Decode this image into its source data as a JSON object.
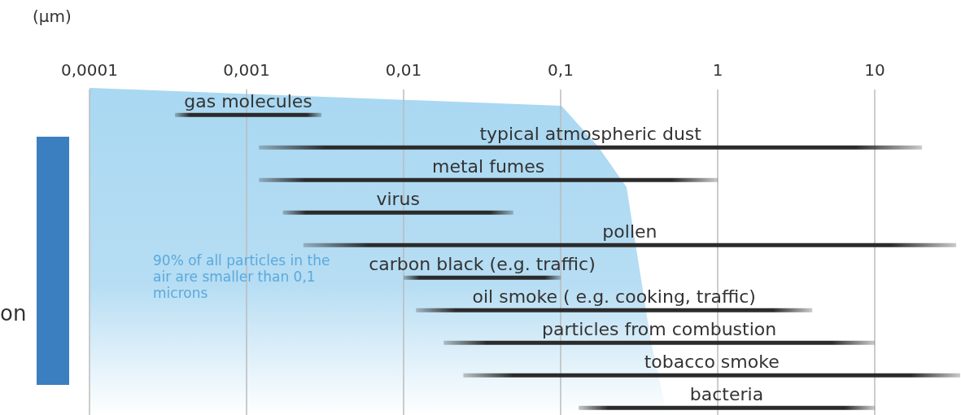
{
  "chart_data": {
    "type": "bar",
    "orientation": "horizontal",
    "xlabel": "(µm)",
    "log": "x",
    "categories": [
      "gas molecules",
      "typical atmospheric dust",
      "metal fumes",
      "virus",
      "pollen",
      "carbon black (e.g. traffic)",
      "oil smoke ( e.g. cooking, traffic)",
      "particles from combustion",
      "tobacco smoke",
      "bacteria"
    ],
    "base": [
      0.00035,
      0.0012,
      0.0012,
      0.0017,
      0.0023,
      0.01,
      0.012,
      0.018,
      0.024,
      0.13
    ],
    "values": [
      0.00265,
      19.9988,
      0.9988,
      0.0483,
      32.9977,
      0.09,
      3.988,
      9.982,
      34.976,
      9.87
    ],
    "color": "#2b2b2b",
    "xlim": [
      0.0001,
      35
    ],
    "xticks": [
      {
        "value": 0.0001,
        "label": "0,0001"
      },
      {
        "value": 0.001,
        "label": "0,001"
      },
      {
        "value": 0.01,
        "label": "0,01"
      },
      {
        "value": 0.1,
        "label": "0,1"
      },
      1,
      10
    ],
    "grid": "x",
    "annotations": [
      "90% of all particles in the air are smaller than 0,1 microns",
      "on"
    ]
  }
}
